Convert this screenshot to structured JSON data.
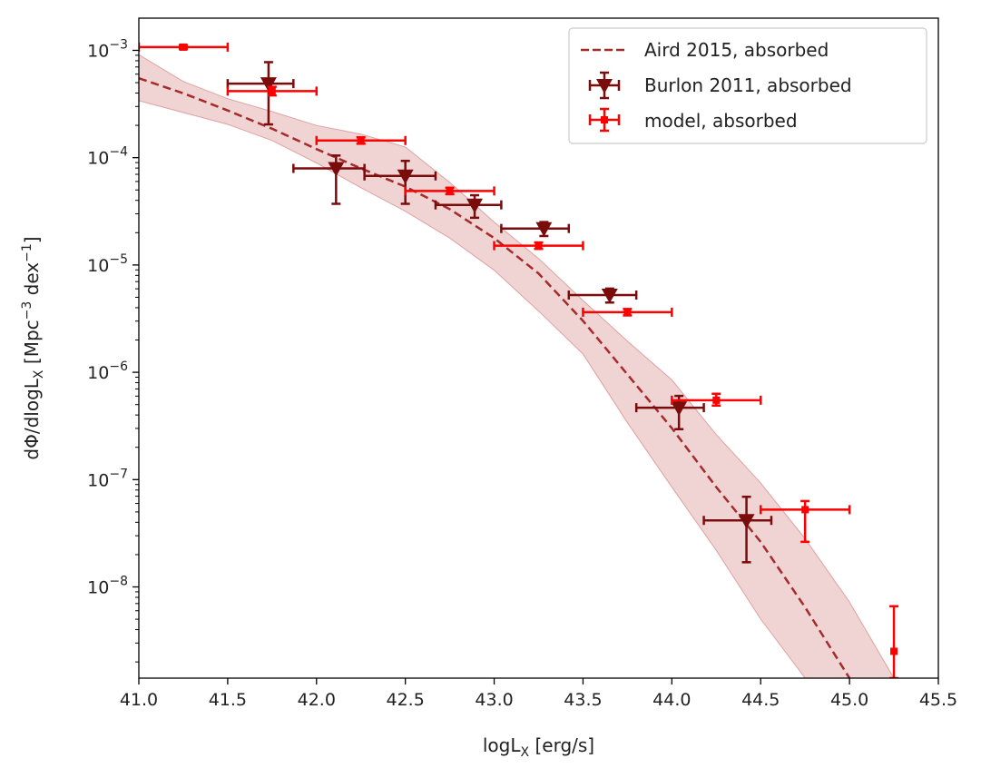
{
  "chart_data": {
    "type": "scatter",
    "title": "",
    "xlabel": {
      "main": "logL",
      "sub": "X",
      "tail": " [erg/s]"
    },
    "ylabel": {
      "p1": "dΦ/dlogL",
      "sub1": "X",
      "p2": " [Mpc",
      "sup1": "−3",
      "p3": " dex",
      "sup2": "−1",
      "p4": "]"
    },
    "xlim": [
      41.0,
      45.5
    ],
    "ylim_log10": [
      -8.85,
      -2.7
    ],
    "x_ticks": [
      41.0,
      41.5,
      42.0,
      42.5,
      43.0,
      43.5,
      44.0,
      44.5,
      45.0,
      45.5
    ],
    "x_tick_labels": [
      "41.0",
      "41.5",
      "42.0",
      "42.5",
      "43.0",
      "43.5",
      "44.0",
      "44.5",
      "45.0",
      "45.5"
    ],
    "y_tick_exponents": [
      -3,
      -4,
      -5,
      -6,
      -7,
      -8
    ],
    "y_tick_labels": [
      {
        "base": "10",
        "exp": "−3"
      },
      {
        "base": "10",
        "exp": "−4"
      },
      {
        "base": "10",
        "exp": "−5"
      },
      {
        "base": "10",
        "exp": "−6"
      },
      {
        "base": "10",
        "exp": "−7"
      },
      {
        "base": "10",
        "exp": "−8"
      }
    ],
    "legend": {
      "position": "top-right",
      "entries": [
        {
          "label": "Aird 2015, absorbed",
          "kind": "dashed-line"
        },
        {
          "label": "Burlon 2011, absorbed",
          "kind": "triangle-errorbar"
        },
        {
          "label": "model, absorbed",
          "kind": "square-errorbar"
        }
      ]
    },
    "series": [
      {
        "name": "Aird 2015, absorbed",
        "kind": "dashed-line",
        "color": "#a52a2a",
        "x": [
          41.0,
          41.25,
          41.5,
          41.75,
          42.0,
          42.25,
          42.5,
          42.75,
          43.0,
          43.25,
          43.5,
          43.75,
          44.0,
          44.25,
          44.5,
          44.75,
          45.0
        ],
        "y_log10": [
          -3.26,
          -3.4,
          -3.56,
          -3.73,
          -3.92,
          -4.1,
          -4.27,
          -4.48,
          -4.75,
          -5.08,
          -5.52,
          -6.02,
          -6.52,
          -7.07,
          -7.58,
          -8.19,
          -8.85
        ],
        "band_upper_log10": [
          -3.04,
          -3.29,
          -3.45,
          -3.57,
          -3.7,
          -3.78,
          -3.9,
          -4.23,
          -4.6,
          -4.94,
          -5.33,
          -5.71,
          -6.07,
          -6.58,
          -7.03,
          -7.55,
          -8.14,
          -8.85
        ],
        "band_upper_x": [
          41.0,
          41.25,
          41.5,
          41.75,
          42.0,
          42.25,
          42.5,
          42.75,
          43.0,
          43.25,
          43.5,
          43.75,
          44.0,
          44.25,
          44.5,
          44.75,
          45.0,
          45.25
        ],
        "band_lower_log10": [
          -3.47,
          -3.58,
          -3.69,
          -3.84,
          -4.05,
          -4.28,
          -4.5,
          -4.75,
          -5.05,
          -5.43,
          -5.83,
          -6.47,
          -7.07,
          -7.66,
          -8.3,
          -8.85
        ],
        "band_lower_x": [
          41.0,
          41.25,
          41.5,
          41.75,
          42.0,
          42.25,
          42.5,
          42.75,
          43.0,
          43.25,
          43.5,
          43.75,
          44.0,
          44.25,
          44.5,
          44.75
        ]
      },
      {
        "name": "Burlon 2011, absorbed",
        "kind": "triangle-errorbar",
        "color": "#7b0c0c",
        "points": [
          {
            "x": 41.73,
            "xlo": 41.5,
            "xhi": 41.87,
            "y_log10": -3.31,
            "ylo": -3.69,
            "yhi": -3.11
          },
          {
            "x": 42.11,
            "xlo": 41.87,
            "xhi": 42.27,
            "y_log10": -4.1,
            "ylo": -4.43,
            "yhi": -3.98
          },
          {
            "x": 42.5,
            "xlo": 42.27,
            "xhi": 42.67,
            "y_log10": -4.17,
            "ylo": -4.43,
            "yhi": -4.03
          },
          {
            "x": 42.89,
            "xlo": 42.67,
            "xhi": 43.04,
            "y_log10": -4.44,
            "ylo": -4.56,
            "yhi": -4.35
          },
          {
            "x": 43.28,
            "xlo": 43.04,
            "xhi": 43.42,
            "y_log10": -4.66,
            "ylo": -4.73,
            "yhi": -4.6
          },
          {
            "x": 43.65,
            "xlo": 43.42,
            "xhi": 43.8,
            "y_log10": -5.28,
            "ylo": -5.35,
            "yhi": -5.22
          },
          {
            "x": 44.04,
            "xlo": 43.8,
            "xhi": 44.18,
            "y_log10": -6.33,
            "ylo": -6.53,
            "yhi": -6.22
          },
          {
            "x": 44.42,
            "xlo": 44.18,
            "xhi": 44.56,
            "y_log10": -7.38,
            "ylo": -7.77,
            "yhi": -7.16
          }
        ]
      },
      {
        "name": "model, absorbed",
        "kind": "square-errorbar",
        "color": "#ff0000",
        "points": [
          {
            "x": 41.25,
            "xlo": 41.0,
            "xhi": 41.5,
            "y_log10": -2.97,
            "ylo": -2.99,
            "yhi": -2.95
          },
          {
            "x": 41.75,
            "xlo": 41.5,
            "xhi": 42.0,
            "y_log10": -3.38,
            "ylo": -3.42,
            "yhi": -3.34
          },
          {
            "x": 42.25,
            "xlo": 42.0,
            "xhi": 42.5,
            "y_log10": -3.84,
            "ylo": -3.87,
            "yhi": -3.81
          },
          {
            "x": 42.75,
            "xlo": 42.5,
            "xhi": 43.0,
            "y_log10": -4.31,
            "ylo": -4.34,
            "yhi": -4.28
          },
          {
            "x": 43.25,
            "xlo": 43.0,
            "xhi": 43.5,
            "y_log10": -4.82,
            "ylo": -4.85,
            "yhi": -4.79
          },
          {
            "x": 43.75,
            "xlo": 43.5,
            "xhi": 44.0,
            "y_log10": -5.44,
            "ylo": -5.47,
            "yhi": -5.41
          },
          {
            "x": 44.25,
            "xlo": 44.0,
            "xhi": 44.5,
            "y_log10": -6.26,
            "ylo": -6.31,
            "yhi": -6.2
          },
          {
            "x": 44.75,
            "xlo": 44.5,
            "xhi": 45.0,
            "y_log10": -7.28,
            "ylo": -7.58,
            "yhi": -7.2
          },
          {
            "x": 45.25,
            "xlo": 45.25,
            "xhi": 45.25,
            "y_log10": -8.6,
            "ylo": -8.85,
            "yhi": -8.18
          }
        ]
      }
    ]
  }
}
